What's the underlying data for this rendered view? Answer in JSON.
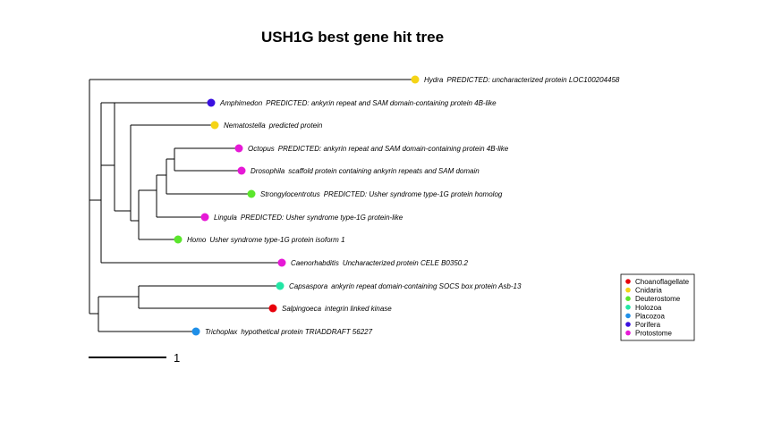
{
  "title": "USH1G best gene hit tree",
  "tips": [
    {
      "id": "hydra",
      "genus": "Hydra",
      "desc": "PREDICTED: uncharacterized protein LOC100204458",
      "group": "Cnidaria"
    },
    {
      "id": "amphimedon",
      "genus": "Amphimedon",
      "desc": "PREDICTED: ankyrin repeat and SAM domain-containing protein 4B-like",
      "group": "Porifera"
    },
    {
      "id": "nematostella",
      "genus": "Nematostella",
      "desc": "predicted protein",
      "group": "Cnidaria"
    },
    {
      "id": "octopus",
      "genus": "Octopus",
      "desc": "PREDICTED: ankyrin repeat and SAM domain-containing protein 4B-like",
      "group": "Protostome"
    },
    {
      "id": "drosophila",
      "genus": "Drosophila",
      "desc": "scaffold protein containing ankyrin repeats and SAM domain",
      "group": "Protostome"
    },
    {
      "id": "strongylocentrotus",
      "genus": "Strongylocentrotus",
      "desc": "PREDICTED: Usher syndrome type-1G protein homolog",
      "group": "Deuterostome"
    },
    {
      "id": "lingula",
      "genus": "Lingula",
      "desc": "PREDICTED: Usher syndrome type-1G protein-like",
      "group": "Protostome"
    },
    {
      "id": "homo",
      "genus": "Homo",
      "desc": "Usher syndrome type-1G protein isoform 1",
      "group": "Deuterostome"
    },
    {
      "id": "caenorhabditis",
      "genus": "Caenorhabditis",
      "desc": "Uncharacterized protein CELE B0350.2",
      "group": "Protostome"
    },
    {
      "id": "capsaspora",
      "genus": "Capsaspora",
      "desc": "ankyrin repeat domain-containing SOCS box protein Asb-13",
      "group": "Holozoa"
    },
    {
      "id": "salpingoeca",
      "genus": "Salpingoeca",
      "desc": "integrin linked kinase",
      "group": "Choanoflagellate"
    },
    {
      "id": "trichoplax",
      "genus": "Trichoplax",
      "desc": "hypothetical protein TRIADDRAFT 56227",
      "group": "Placozoa"
    }
  ],
  "legend": [
    {
      "label": "Choanoflagellate",
      "color": "#e8000b"
    },
    {
      "label": "Cnidaria",
      "color": "#f5d416"
    },
    {
      "label": "Deuterostome",
      "color": "#5be62c"
    },
    {
      "label": "Holozoa",
      "color": "#22e6a5"
    },
    {
      "label": "Placozoa",
      "color": "#1f8fe8"
    },
    {
      "label": "Porifera",
      "color": "#3a10e0"
    },
    {
      "label": "Protostome",
      "color": "#e619d6"
    }
  ],
  "scale_bar": {
    "label": "1"
  }
}
